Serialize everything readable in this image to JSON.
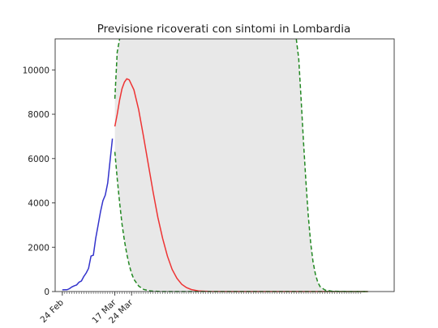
{
  "chart_data": {
    "type": "line",
    "title": "Previsione ricoverati con sintomi in Lombardia",
    "xlabel": "",
    "ylabel": "",
    "ylim": [
      0,
      11400
    ],
    "y_ticks": [
      0,
      2000,
      4000,
      6000,
      8000,
      10000
    ],
    "x_ticks": [
      "24 Feb",
      "17 Mar",
      "24 Mar"
    ],
    "x_tick_days": [
      0,
      22,
      29
    ],
    "xlim_days": [
      -3,
      139
    ],
    "grid": false,
    "legend": "none",
    "series": [
      {
        "style": "solid",
        "color": "#3333cc",
        "points": [
          [
            0,
            76
          ],
          [
            1,
            79
          ],
          [
            2,
            80
          ],
          [
            3,
            130
          ],
          [
            4,
            210
          ],
          [
            5,
            260
          ],
          [
            6,
            300
          ],
          [
            7,
            420
          ],
          [
            8,
            480
          ],
          [
            9,
            680
          ],
          [
            10,
            840
          ],
          [
            11,
            1050
          ],
          [
            12,
            1600
          ],
          [
            13,
            1640
          ],
          [
            14,
            2400
          ],
          [
            15,
            3000
          ],
          [
            16,
            3600
          ],
          [
            17,
            4100
          ],
          [
            18,
            4350
          ],
          [
            19,
            4900
          ],
          [
            20,
            5900
          ],
          [
            21,
            6900
          ]
        ]
      },
      {
        "style": "solid",
        "color": "#ee3333",
        "points": [
          [
            22,
            7450
          ],
          [
            23,
            8000
          ],
          [
            24,
            8650
          ],
          [
            25,
            9150
          ],
          [
            26,
            9450
          ],
          [
            27,
            9600
          ],
          [
            28,
            9550
          ],
          [
            30,
            9100
          ],
          [
            32,
            8200
          ],
          [
            34,
            7000
          ],
          [
            36,
            5750
          ],
          [
            38,
            4500
          ],
          [
            40,
            3350
          ],
          [
            42,
            2400
          ],
          [
            44,
            1600
          ],
          [
            46,
            1000
          ],
          [
            48,
            600
          ],
          [
            50,
            330
          ],
          [
            52,
            180
          ],
          [
            54,
            90
          ],
          [
            57,
            30
          ],
          [
            62,
            5
          ],
          [
            70,
            0
          ],
          [
            110,
            0
          ],
          [
            128,
            0
          ]
        ]
      },
      {
        "style": "dashed",
        "color": "#228822",
        "points": [
          [
            22,
            8700
          ],
          [
            23,
            10800
          ],
          [
            24,
            11400
          ]
        ]
      },
      {
        "style": "dashed",
        "color": "#228822",
        "points": [
          [
            98,
            11400
          ],
          [
            99,
            10500
          ],
          [
            100,
            8700
          ],
          [
            101,
            6800
          ],
          [
            102,
            5000
          ],
          [
            103,
            3450
          ],
          [
            104,
            2200
          ],
          [
            105,
            1350
          ],
          [
            106,
            780
          ],
          [
            107,
            420
          ],
          [
            108,
            220
          ],
          [
            110,
            70
          ],
          [
            113,
            15
          ],
          [
            120,
            0
          ],
          [
            128,
            0
          ]
        ]
      },
      {
        "style": "dashed",
        "color": "#228822",
        "points": [
          [
            22,
            6300
          ],
          [
            23,
            5100
          ],
          [
            24,
            4000
          ],
          [
            25,
            3050
          ],
          [
            26,
            2300
          ],
          [
            27,
            1700
          ],
          [
            28,
            1200
          ],
          [
            29,
            820
          ],
          [
            30,
            550
          ],
          [
            32,
            250
          ],
          [
            34,
            100
          ],
          [
            37,
            25
          ],
          [
            42,
            0
          ],
          [
            128,
            0
          ]
        ]
      }
    ],
    "confidence_band": {
      "color": "#e8e8e8",
      "upper": [
        [
          22,
          8700
        ],
        [
          23,
          10800
        ],
        [
          24,
          11400
        ],
        [
          98,
          11400
        ],
        [
          99,
          10500
        ],
        [
          100,
          8700
        ],
        [
          101,
          6800
        ],
        [
          102,
          5000
        ],
        [
          103,
          3450
        ],
        [
          104,
          2200
        ],
        [
          105,
          1350
        ],
        [
          106,
          780
        ],
        [
          107,
          420
        ],
        [
          108,
          220
        ],
        [
          110,
          70
        ],
        [
          113,
          15
        ],
        [
          120,
          0
        ]
      ],
      "lower": [
        [
          22,
          6300
        ],
        [
          23,
          5100
        ],
        [
          24,
          4000
        ],
        [
          25,
          3050
        ],
        [
          26,
          2300
        ],
        [
          27,
          1700
        ],
        [
          28,
          1200
        ],
        [
          29,
          820
        ],
        [
          30,
          550
        ],
        [
          32,
          250
        ],
        [
          34,
          100
        ],
        [
          37,
          25
        ],
        [
          42,
          0
        ],
        [
          120,
          0
        ]
      ]
    }
  }
}
